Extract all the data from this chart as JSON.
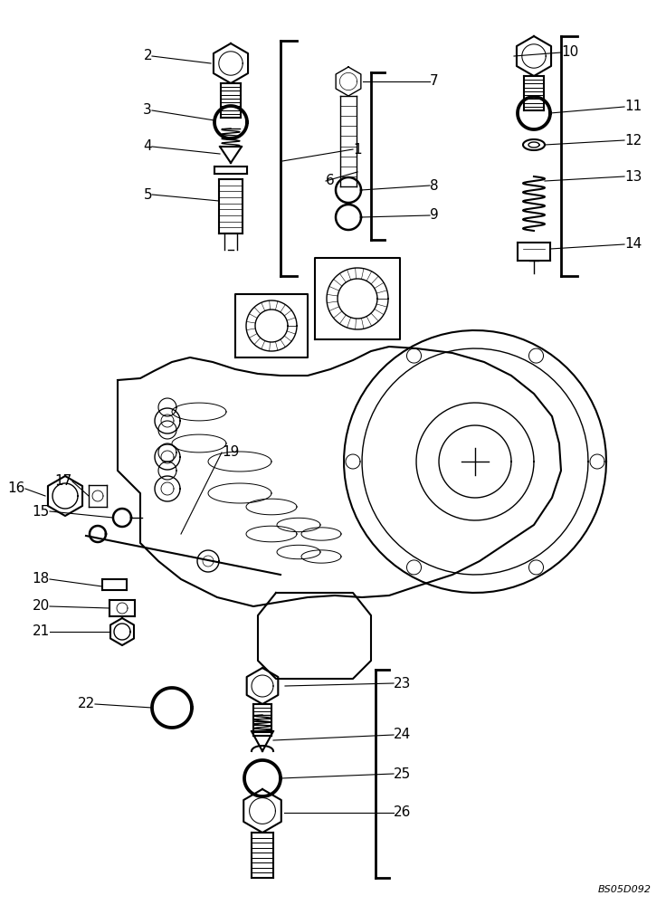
{
  "bg_color": "#ffffff",
  "lc": "#000000",
  "watermark": "BS05D092",
  "figsize": [
    7.36,
    10.0
  ],
  "dpi": 100
}
